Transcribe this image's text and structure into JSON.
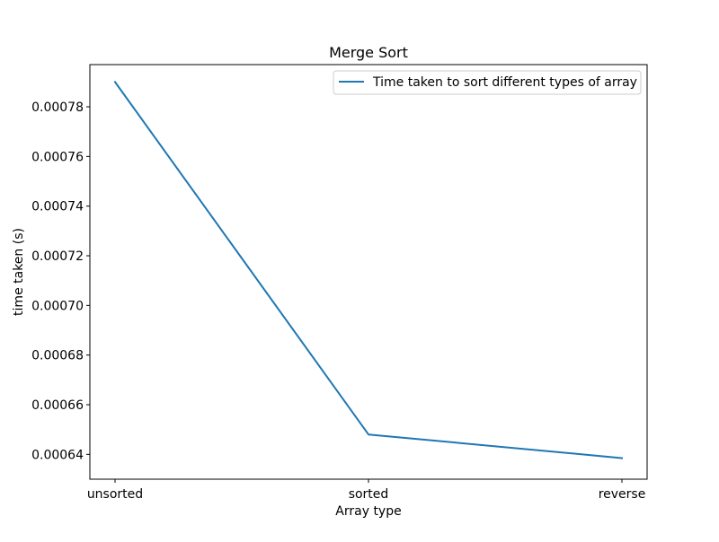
{
  "chart_data": {
    "type": "line",
    "title": "Merge Sort",
    "xlabel": "Array type",
    "ylabel": "time taken (s)",
    "categories": [
      "unsorted",
      "sorted",
      "reverse"
    ],
    "series": [
      {
        "name": "Time taken to sort different types of array",
        "values": [
          0.00079,
          0.000648,
          0.0006385
        ],
        "color": "#1f77b4"
      }
    ],
    "ylim": [
      0.00063,
      0.000797
    ],
    "yticks": [
      0.00064,
      0.00066,
      0.00068,
      0.0007,
      0.00072,
      0.00074,
      0.00076,
      0.00078
    ],
    "ytick_labels": [
      "0.00064",
      "0.00066",
      "0.00068",
      "0.00070",
      "0.00072",
      "0.00074",
      "0.00076",
      "0.00078"
    ],
    "grid": false,
    "legend_position": "upper right"
  }
}
